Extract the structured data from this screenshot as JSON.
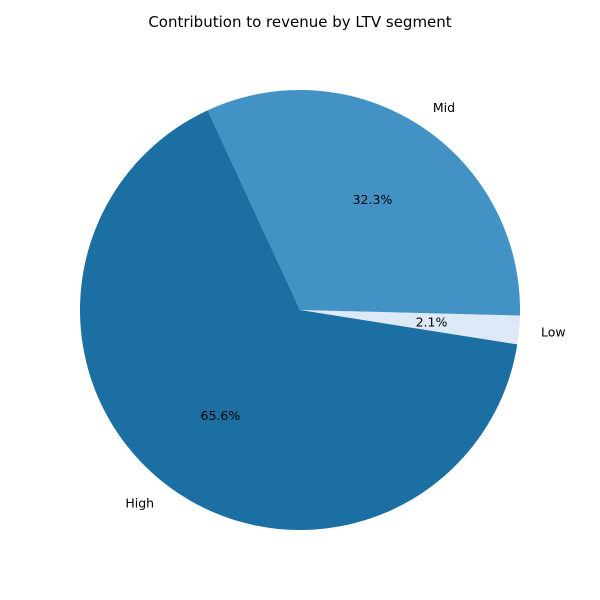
{
  "chart_data": {
    "type": "pie",
    "title": "Contribution to revenue by LTV segment",
    "slices": [
      {
        "label": "Low",
        "value": 2.1,
        "pct_label": "2.1%",
        "color": "#dde9f6"
      },
      {
        "label": "Mid",
        "value": 32.3,
        "pct_label": "32.3%",
        "color": "#4392c6"
      },
      {
        "label": "High",
        "value": 65.6,
        "pct_label": "65.6%",
        "color": "#1c6fa2"
      }
    ],
    "start_angle_deg": -9,
    "direction": "counterclockwise"
  }
}
